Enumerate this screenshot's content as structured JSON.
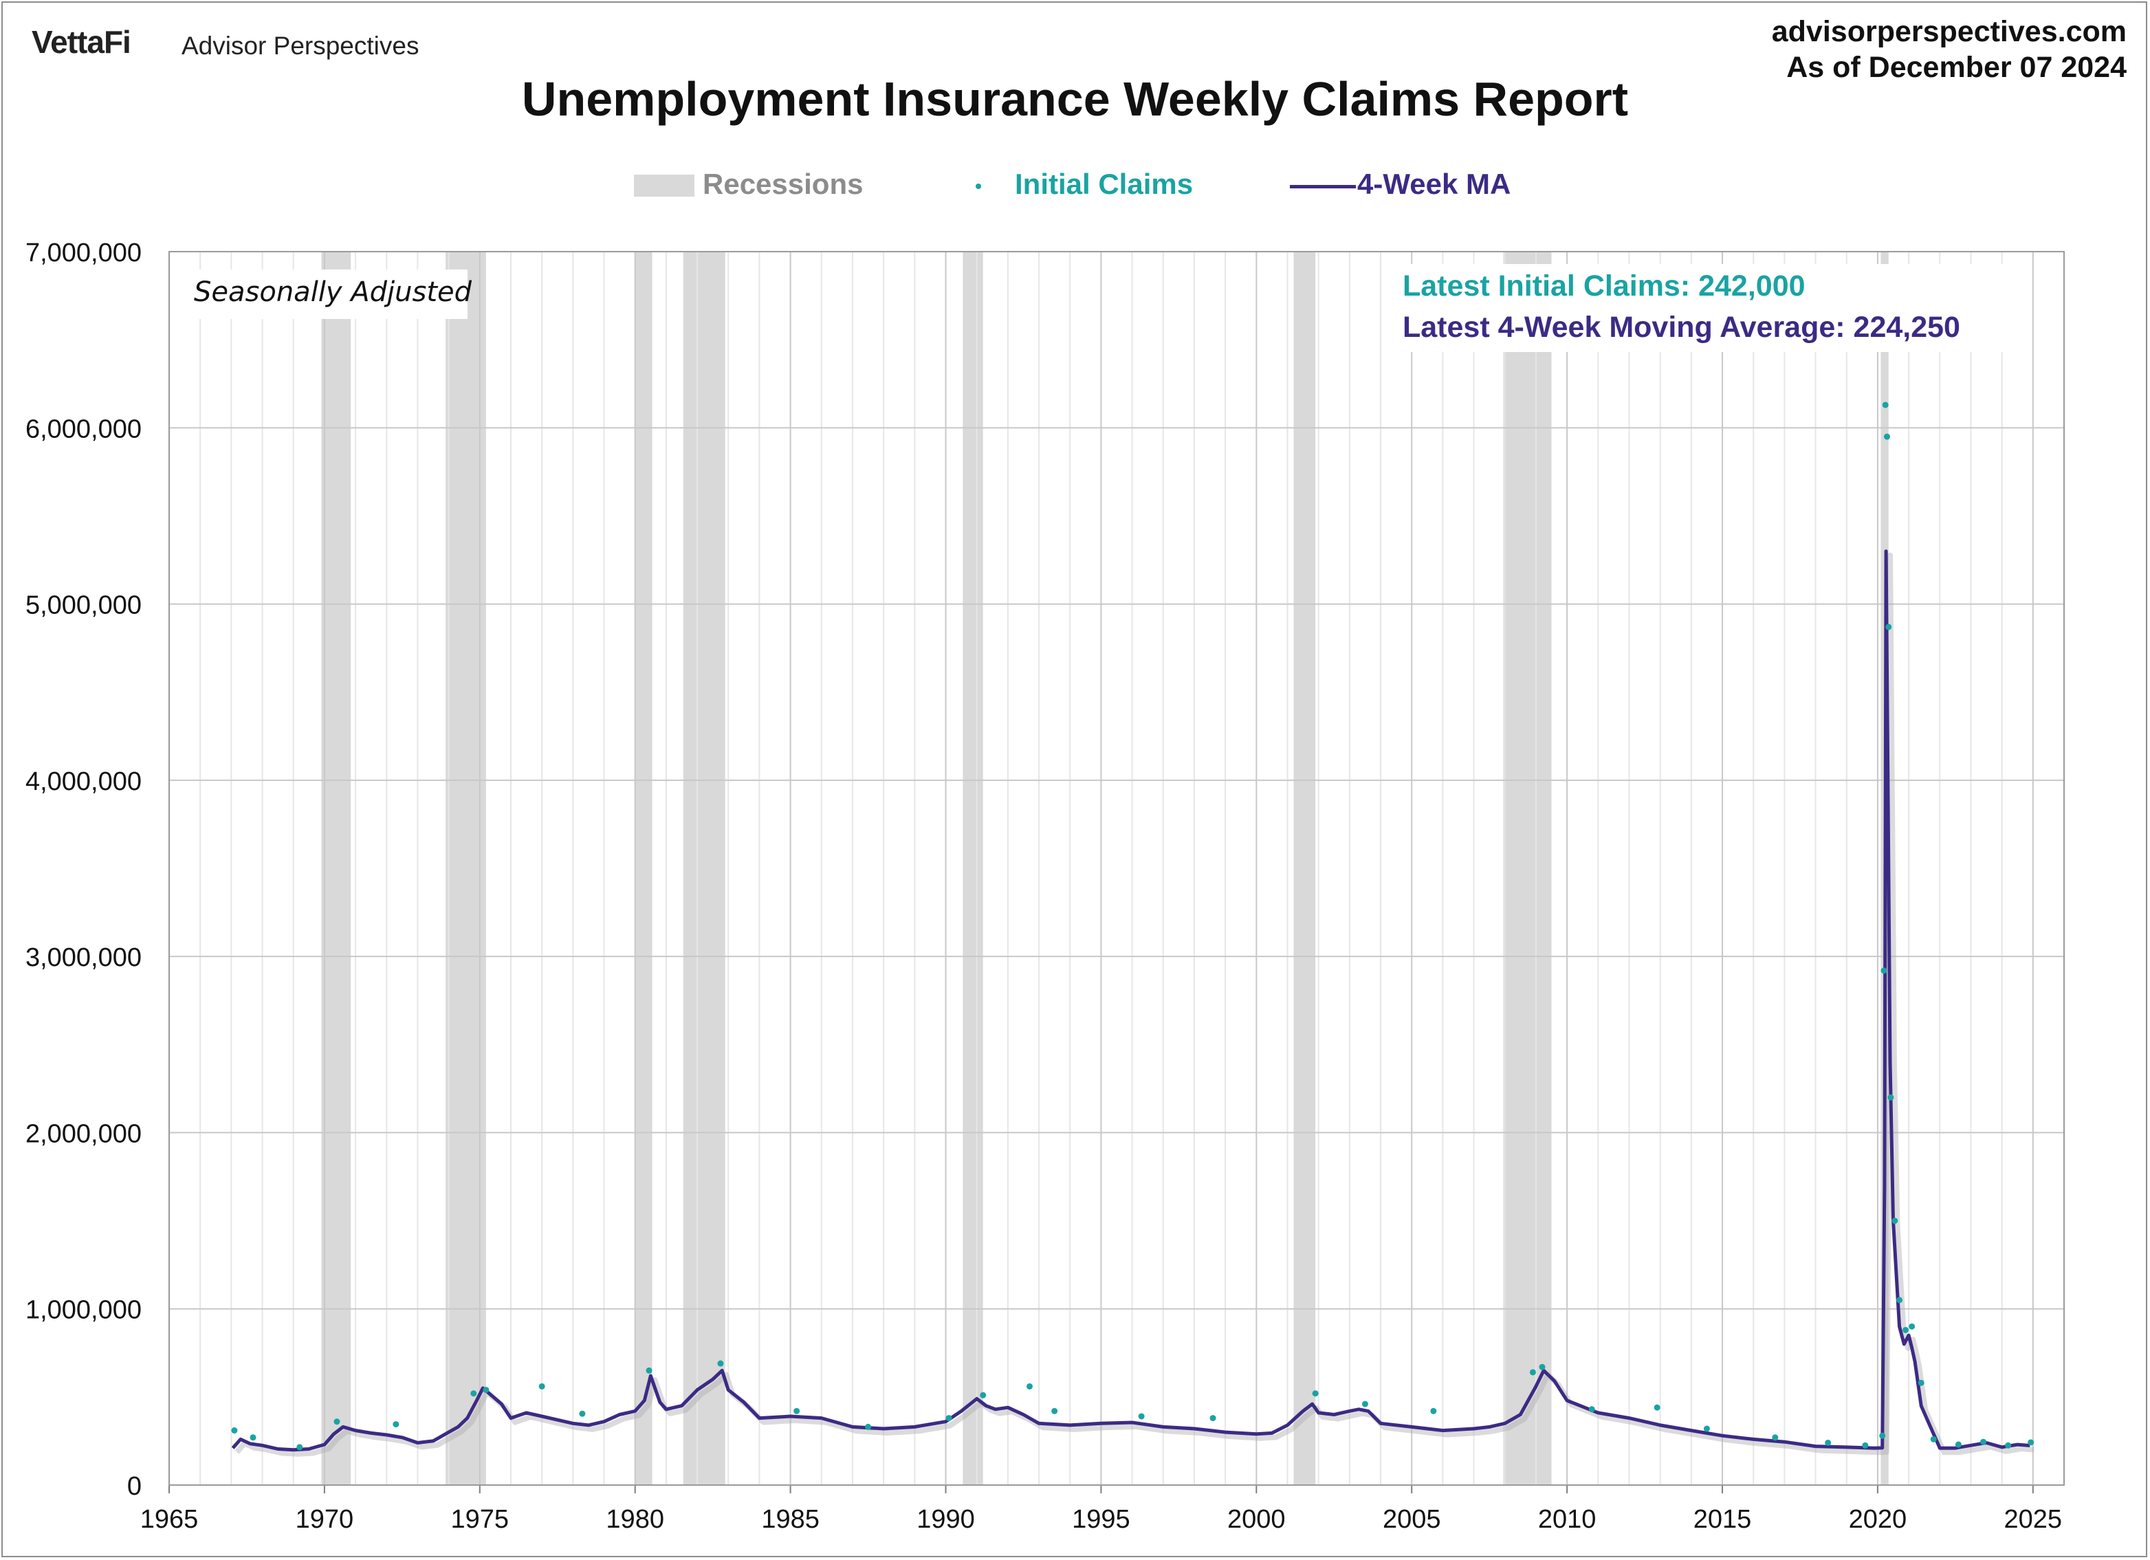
{
  "header": {
    "brand": "VettaFi",
    "brand_sub": "Advisor Perspectives",
    "site": "advisorperspectives.com",
    "as_of": "As of December 07 2024"
  },
  "colors": {
    "recession": "#d9d9d9",
    "initial_claims": "#1aa3a3",
    "moving_average": "#3c2a85",
    "grid": "#c8c8c8"
  },
  "chart_data": {
    "type": "line",
    "title": "Unemployment Insurance Weekly Claims Report",
    "note": "Seasonally Adjusted",
    "annotations": {
      "latest_initial": "Latest Initial Claims: 242,000",
      "latest_ma": "Latest 4-Week Moving Average: 224,250"
    },
    "legend": {
      "position": "top-center",
      "items": [
        "Recessions",
        "Initial Claims",
        "4-Week MA"
      ]
    },
    "xlabel": "",
    "ylabel": "",
    "xlim": [
      1965,
      2026
    ],
    "ylim": [
      0,
      7000000
    ],
    "x_ticks": [
      1965,
      1970,
      1975,
      1980,
      1985,
      1990,
      1995,
      2000,
      2005,
      2010,
      2015,
      2020,
      2025
    ],
    "y_ticks": [
      0,
      1000000,
      2000000,
      3000000,
      4000000,
      5000000,
      6000000,
      7000000
    ],
    "y_tick_labels": [
      "0",
      "1,000,000",
      "2,000,000",
      "3,000,000",
      "4,000,000",
      "5,000,000",
      "6,000,000",
      "7,000,000"
    ],
    "grid": true,
    "recessions": [
      [
        1969.9,
        1970.85
      ],
      [
        1973.9,
        1975.2
      ],
      [
        1980.0,
        1980.55
      ],
      [
        1981.55,
        1982.9
      ],
      [
        1990.55,
        1991.2
      ],
      [
        2001.2,
        2001.9
      ],
      [
        2007.95,
        2009.5
      ],
      [
        2020.1,
        2020.35
      ]
    ],
    "series": [
      {
        "name": "4-Week MA",
        "x": [
          1967.05,
          1967.3,
          1967.6,
          1968.0,
          1968.5,
          1969.0,
          1969.5,
          1970.0,
          1970.3,
          1970.6,
          1971.0,
          1971.5,
          1972.0,
          1972.5,
          1973.0,
          1973.5,
          1974.0,
          1974.3,
          1974.6,
          1974.9,
          1975.1,
          1975.3,
          1975.7,
          1976.0,
          1976.5,
          1977.0,
          1977.5,
          1978.0,
          1978.5,
          1979.0,
          1979.5,
          1980.0,
          1980.3,
          1980.5,
          1980.8,
          1981.0,
          1981.5,
          1982.0,
          1982.5,
          1982.8,
          1983.0,
          1983.5,
          1984.0,
          1985.0,
          1986.0,
          1987.0,
          1988.0,
          1989.0,
          1990.0,
          1990.5,
          1991.0,
          1991.3,
          1991.6,
          1992.0,
          1992.5,
          1993.0,
          1994.0,
          1995.0,
          1996.0,
          1997.0,
          1998.0,
          1999.0,
          2000.0,
          2000.5,
          2001.0,
          2001.5,
          2001.8,
          2002.0,
          2002.5,
          2003.0,
          2003.3,
          2003.6,
          2004.0,
          2005.0,
          2006.0,
          2007.0,
          2007.5,
          2008.0,
          2008.5,
          2009.0,
          2009.25,
          2009.6,
          2010.0,
          2011.0,
          2012.0,
          2013.0,
          2014.0,
          2015.0,
          2016.0,
          2017.0,
          2018.0,
          2019.0,
          2019.9,
          2020.15,
          2020.22,
          2020.27,
          2020.33,
          2020.4,
          2020.5,
          2020.6,
          2020.7,
          2020.85,
          2021.0,
          2021.1,
          2021.2,
          2021.4,
          2021.6,
          2021.9,
          2022.0,
          2022.5,
          2023.0,
          2023.5,
          2024.0,
          2024.5,
          2024.9
        ],
        "values": [
          210000,
          260000,
          235000,
          225000,
          205000,
          200000,
          205000,
          230000,
          290000,
          330000,
          310000,
          295000,
          285000,
          270000,
          240000,
          250000,
          300000,
          330000,
          380000,
          480000,
          550000,
          520000,
          460000,
          380000,
          410000,
          390000,
          370000,
          350000,
          340000,
          360000,
          400000,
          420000,
          480000,
          620000,
          470000,
          430000,
          450000,
          540000,
          600000,
          650000,
          540000,
          470000,
          380000,
          390000,
          380000,
          330000,
          320000,
          330000,
          360000,
          420000,
          490000,
          450000,
          430000,
          440000,
          400000,
          350000,
          340000,
          350000,
          355000,
          330000,
          320000,
          300000,
          290000,
          295000,
          340000,
          420000,
          460000,
          410000,
          400000,
          420000,
          430000,
          420000,
          350000,
          330000,
          310000,
          320000,
          330000,
          350000,
          400000,
          560000,
          650000,
          590000,
          480000,
          410000,
          380000,
          340000,
          310000,
          280000,
          260000,
          245000,
          220000,
          215000,
          210000,
          211000,
          1700000,
          5300000,
          4000000,
          2400000,
          1500000,
          1200000,
          900000,
          800000,
          850000,
          780000,
          700000,
          450000,
          370000,
          250000,
          210000,
          210000,
          225000,
          240000,
          215000,
          230000,
          224250
        ]
      },
      {
        "name": "Initial Claims",
        "x": [
          1967.1,
          1967.7,
          1969.2,
          1970.4,
          1972.3,
          1974.8,
          1975.2,
          1977.0,
          1978.3,
          1980.45,
          1982.75,
          1985.2,
          1987.5,
          1990.1,
          1991.2,
          1992.7,
          1993.5,
          1996.3,
          1998.6,
          2001.9,
          2003.5,
          2005.7,
          2008.9,
          2009.2,
          2010.8,
          2012.9,
          2014.5,
          2016.7,
          2018.4,
          2019.6,
          2020.15,
          2020.2,
          2020.25,
          2020.3,
          2020.35,
          2020.42,
          2020.55,
          2020.7,
          2020.9,
          2021.1,
          2021.4,
          2021.8,
          2022.6,
          2023.4,
          2024.2,
          2024.93
        ],
        "values": [
          310000,
          270000,
          215000,
          360000,
          345000,
          520000,
          540000,
          560000,
          405000,
          650000,
          690000,
          420000,
          330000,
          380000,
          510000,
          560000,
          420000,
          390000,
          380000,
          520000,
          460000,
          420000,
          640000,
          670000,
          430000,
          440000,
          320000,
          270000,
          240000,
          225000,
          280000,
          2920000,
          6130000,
          5950000,
          4870000,
          2200000,
          1500000,
          1050000,
          880000,
          900000,
          580000,
          260000,
          230000,
          245000,
          225000,
          242000
        ]
      }
    ]
  }
}
